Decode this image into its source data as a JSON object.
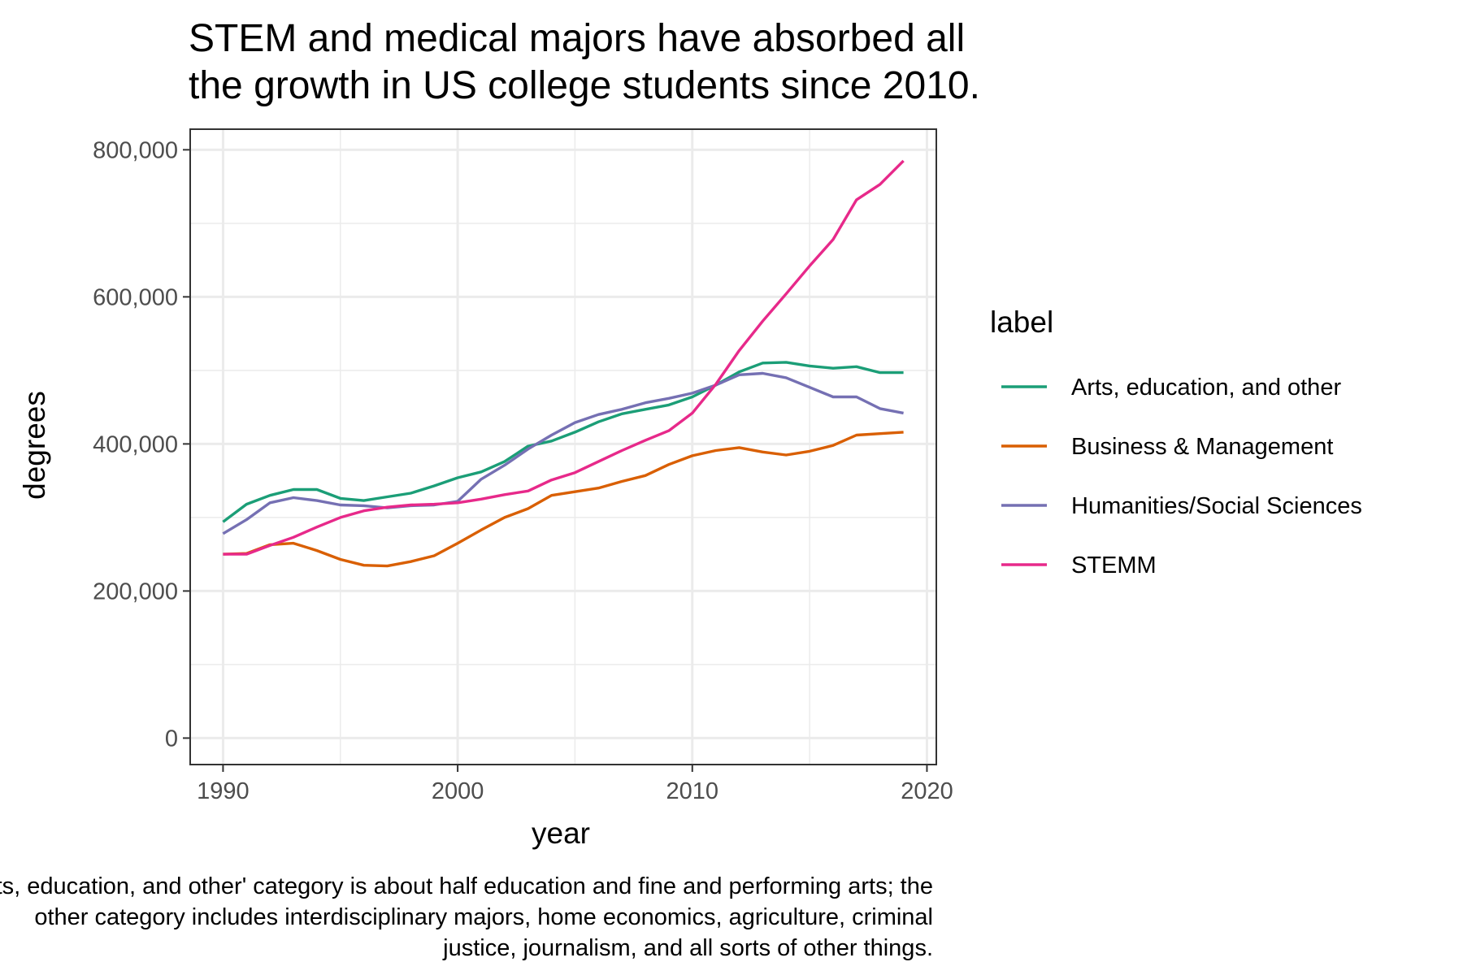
{
  "chart_data": {
    "type": "line",
    "title": "STEM and medical majors have absorbed all the growth in US college students since 2010.",
    "title_lines": [
      "STEM and medical majors have absorbed all",
      "the growth in US college students since 2010."
    ],
    "xlabel": "year",
    "ylabel": "degrees",
    "xlim": [
      1988.6,
      2020.4
    ],
    "ylim": [
      -36000,
      828000
    ],
    "x_ticks": [
      1990,
      2000,
      2010,
      2020
    ],
    "y_ticks": [
      0,
      200000,
      400000,
      600000,
      800000
    ],
    "y_tick_labels": [
      "0",
      "200,000",
      "400,000",
      "600,000",
      "800,000"
    ],
    "grid": true,
    "legend": {
      "title": "label",
      "position": "right"
    },
    "x": [
      1990,
      1991,
      1992,
      1993,
      1994,
      1995,
      1996,
      1997,
      1998,
      1999,
      2000,
      2001,
      2002,
      2003,
      2004,
      2005,
      2006,
      2007,
      2008,
      2009,
      2010,
      2011,
      2012,
      2013,
      2014,
      2015,
      2016,
      2017,
      2018,
      2019
    ],
    "series": [
      {
        "name": "Arts, education, and other",
        "color": "#1b9e77",
        "values": [
          294000,
          318000,
          330000,
          338000,
          338000,
          326000,
          323000,
          328000,
          333000,
          343000,
          354000,
          362000,
          376000,
          397000,
          404000,
          416000,
          430000,
          441000,
          447000,
          453000,
          464000,
          480000,
          498000,
          510000,
          511000,
          506000,
          503000,
          505000,
          497000,
          497000
        ]
      },
      {
        "name": "Business & Management",
        "color": "#d95f02",
        "values": [
          250000,
          251000,
          263000,
          265000,
          255000,
          243000,
          235000,
          234000,
          240000,
          248000,
          265000,
          283000,
          300000,
          312000,
          330000,
          335000,
          340000,
          349000,
          357000,
          372000,
          384000,
          391000,
          395000,
          389000,
          385000,
          390000,
          398000,
          412000,
          414000,
          416000
        ]
      },
      {
        "name": "Humanities/Social Sciences",
        "color": "#7570b3",
        "values": [
          278000,
          297000,
          320000,
          327000,
          323000,
          317000,
          316000,
          313000,
          316000,
          317000,
          322000,
          352000,
          371000,
          393000,
          412000,
          429000,
          440000,
          447000,
          456000,
          462000,
          469000,
          480000,
          494000,
          496000,
          490000,
          477000,
          464000,
          464000,
          448000,
          442000
        ]
      },
      {
        "name": "STEMM",
        "color": "#e7298a",
        "values": [
          250000,
          250000,
          262000,
          273000,
          287000,
          300000,
          309000,
          314000,
          317000,
          318000,
          320000,
          325000,
          331000,
          336000,
          351000,
          361000,
          376000,
          391000,
          405000,
          418000,
          442000,
          481000,
          527000,
          567000,
          604000,
          642000,
          678000,
          732000,
          753000,
          785000
        ]
      }
    ],
    "caption_lines": [
      "The 'Arts, education, and other' category is about half education and fine and performing arts; the",
      "other category includes interdisciplinary majors, home economics, agriculture, criminal",
      "justice, journalism, and all sorts of other things."
    ]
  }
}
